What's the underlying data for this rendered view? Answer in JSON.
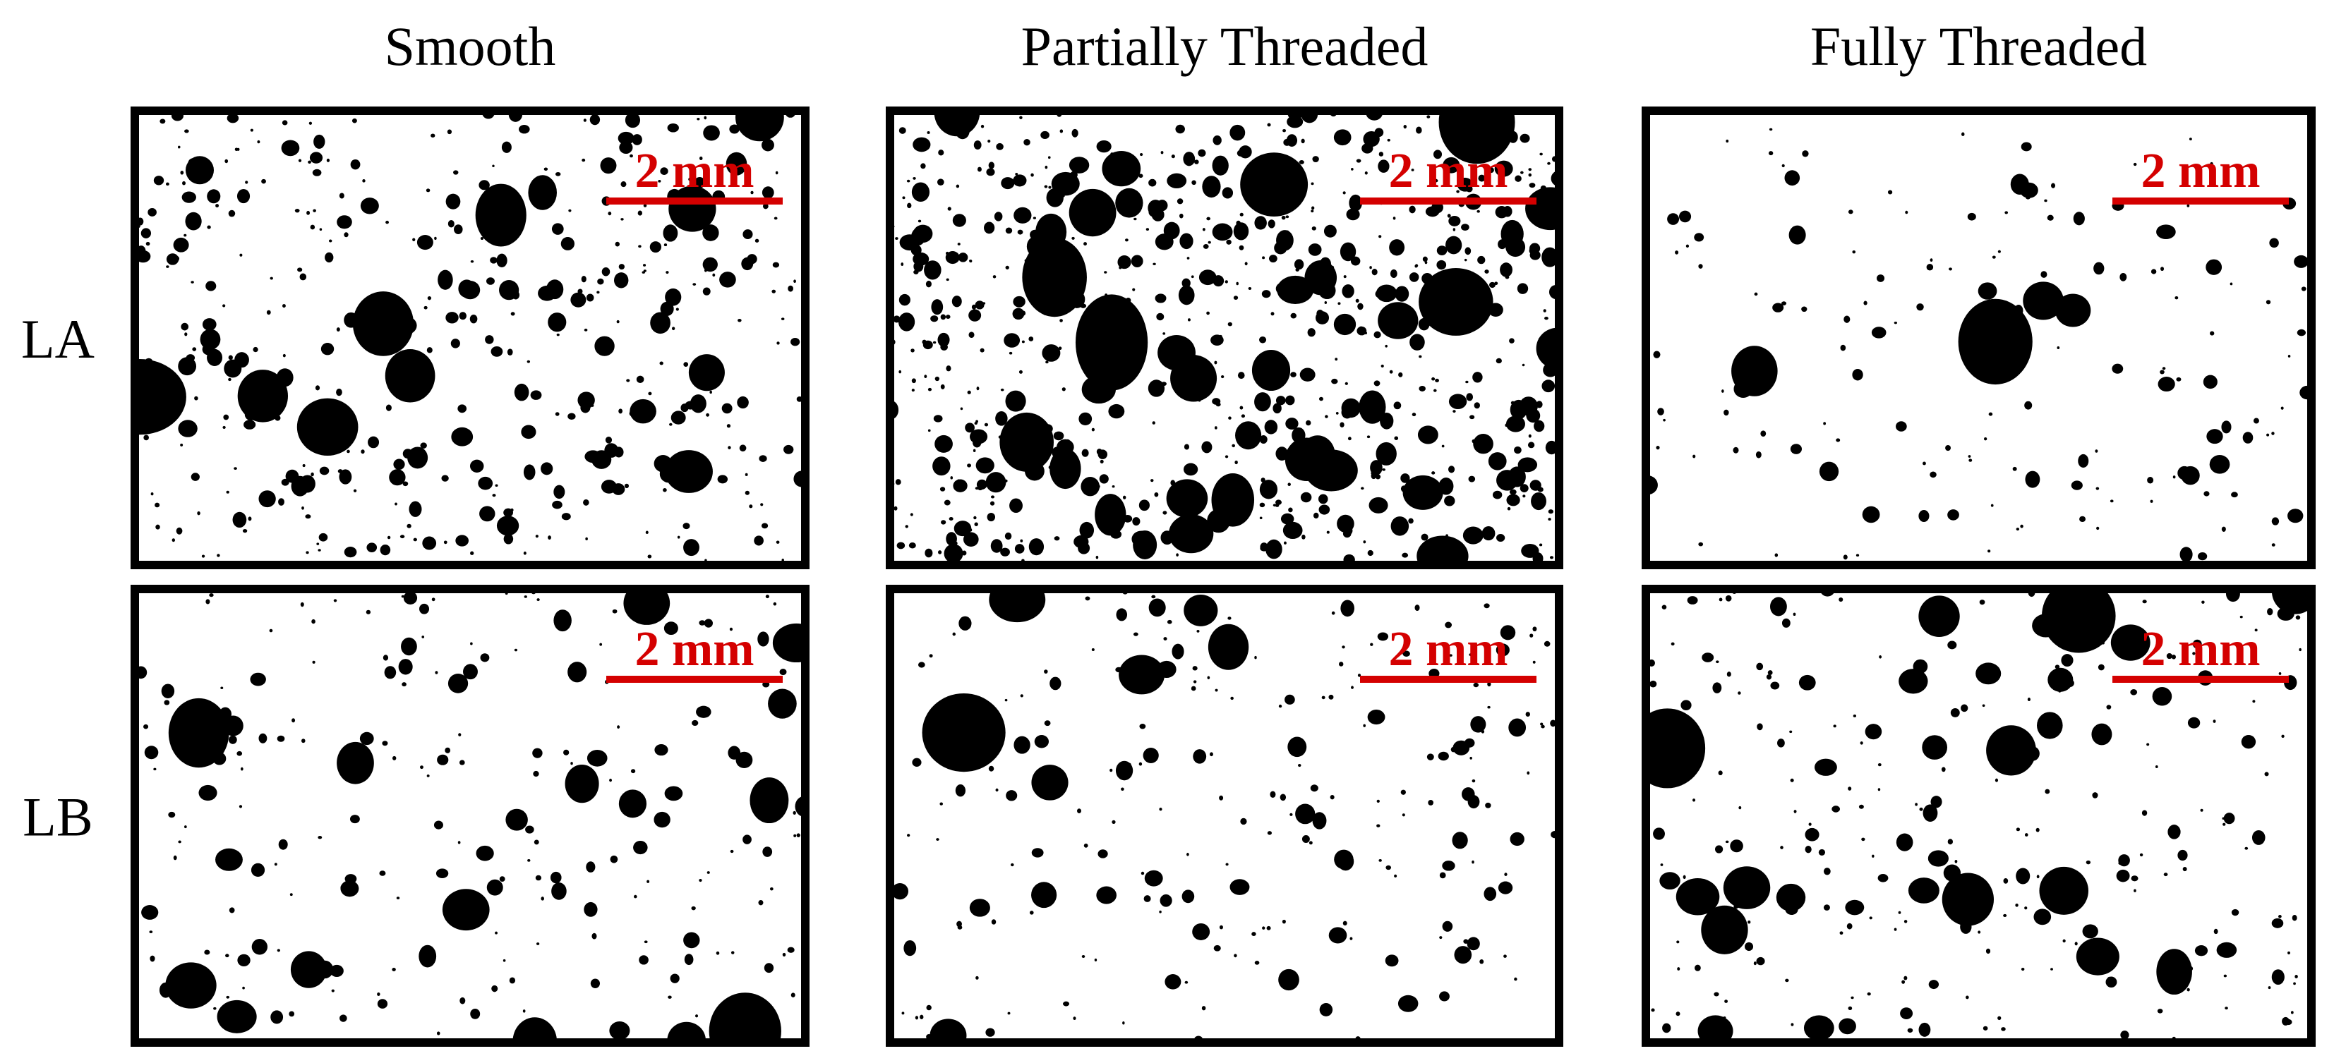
{
  "column_titles": [
    "Smooth",
    "Partially Threaded",
    "Fully Threaded"
  ],
  "row_labels": [
    "LA",
    "LB"
  ],
  "scale_bars": [
    [
      "2 mm",
      "2 mm",
      "2 mm"
    ],
    [
      "2 mm",
      "2 mm",
      "2 mm"
    ]
  ]
}
